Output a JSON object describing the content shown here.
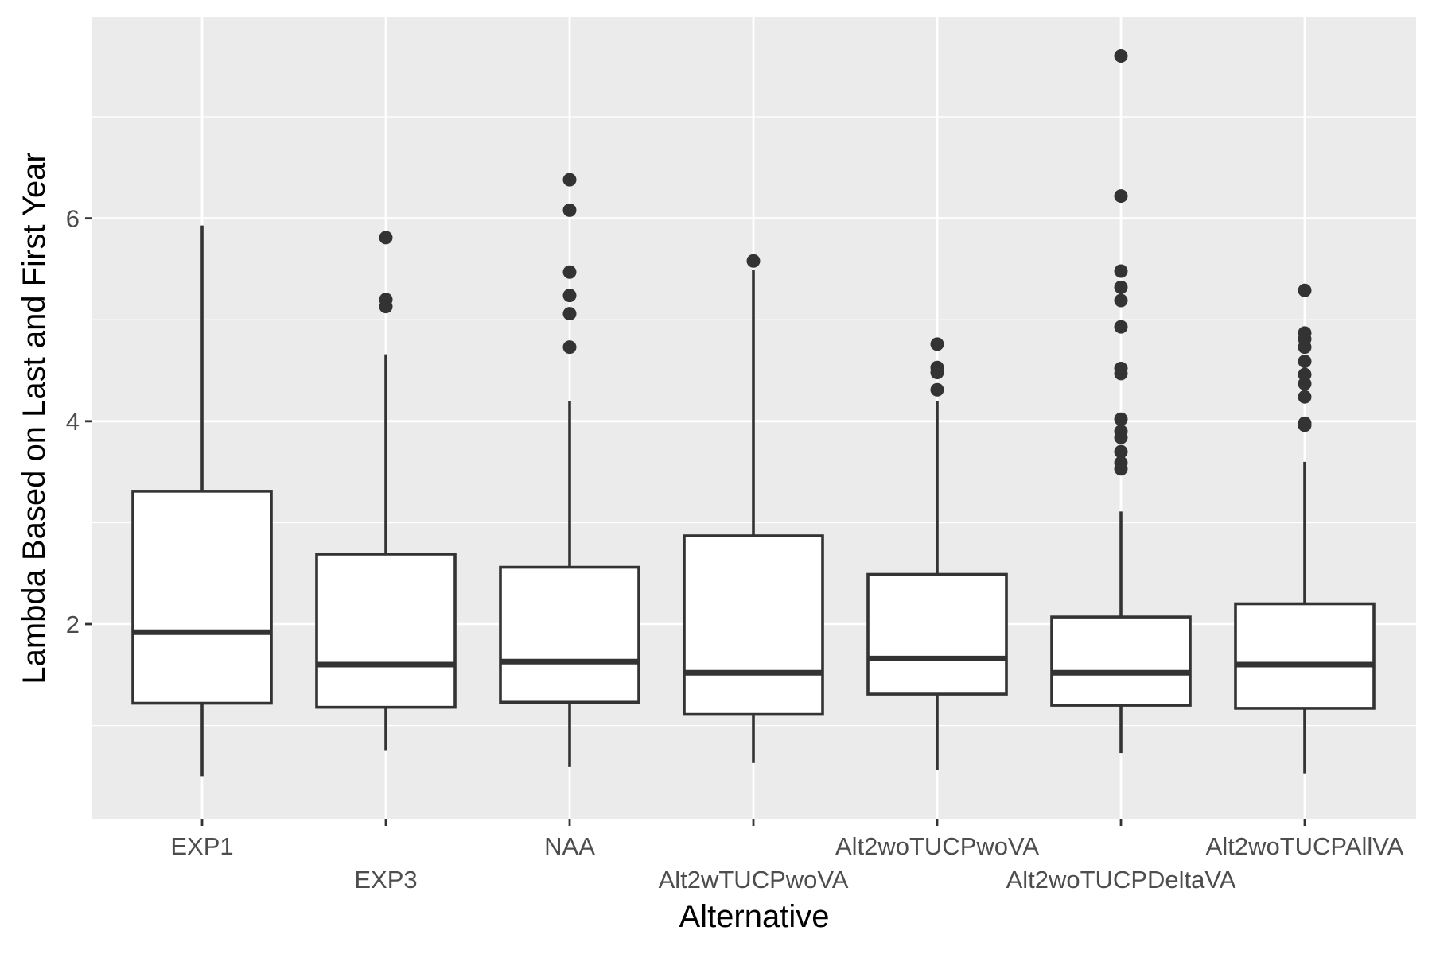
{
  "chart_data": {
    "type": "box",
    "xlabel": "Alternative",
    "ylabel": "Lambda Based on Last and First Year",
    "ylim": [
      0.08,
      7.98
    ],
    "yticks": [
      2,
      4,
      6
    ],
    "grid": true,
    "legend": "none",
    "colors": {
      "panel": "#ebebeb",
      "grid": "#ffffff",
      "box_fill": "#ffffff",
      "box_stroke": "#333333",
      "point": "#333333",
      "tick_text": "#4d4d4d"
    },
    "categories": [
      "EXP1",
      "EXP3",
      "NAA",
      "Alt2wTUCPwoVA",
      "Alt2woTUCPwoVA",
      "Alt2woTUCPDeltaVA",
      "Alt2woTUCPAllVA"
    ],
    "boxes": [
      {
        "category": "EXP1",
        "whisker_low": 0.5,
        "q1": 1.22,
        "median": 1.92,
        "q3": 3.31,
        "whisker_high": 5.93,
        "outliers": []
      },
      {
        "category": "EXP3",
        "whisker_low": 0.75,
        "q1": 1.18,
        "median": 1.6,
        "q3": 2.69,
        "whisker_high": 4.66,
        "outliers": [
          5.13,
          5.2,
          5.81
        ]
      },
      {
        "category": "NAA",
        "whisker_low": 0.59,
        "q1": 1.23,
        "median": 1.63,
        "q3": 2.56,
        "whisker_high": 4.2,
        "outliers": [
          4.73,
          5.06,
          5.24,
          5.47,
          6.08,
          6.38
        ]
      },
      {
        "category": "Alt2wTUCPwoVA",
        "whisker_low": 0.63,
        "q1": 1.11,
        "median": 1.52,
        "q3": 2.87,
        "whisker_high": 5.49,
        "outliers": [
          5.58
        ]
      },
      {
        "category": "Alt2woTUCPwoVA",
        "whisker_low": 0.56,
        "q1": 1.31,
        "median": 1.66,
        "q3": 2.49,
        "whisker_high": 4.2,
        "outliers": [
          4.31,
          4.48,
          4.53,
          4.76
        ]
      },
      {
        "category": "Alt2woTUCPDeltaVA",
        "whisker_low": 0.73,
        "q1": 1.2,
        "median": 1.52,
        "q3": 2.07,
        "whisker_high": 3.11,
        "outliers": [
          3.53,
          3.59,
          3.7,
          3.84,
          3.9,
          4.02,
          4.47,
          4.52,
          4.93,
          5.19,
          5.32,
          5.48,
          6.22,
          7.6
        ]
      },
      {
        "category": "Alt2woTUCPAllVA",
        "whisker_low": 0.53,
        "q1": 1.17,
        "median": 1.6,
        "q3": 2.2,
        "whisker_high": 3.6,
        "outliers": [
          3.96,
          3.98,
          4.24,
          4.37,
          4.46,
          4.59,
          4.73,
          4.81,
          4.87,
          5.29
        ]
      }
    ]
  }
}
